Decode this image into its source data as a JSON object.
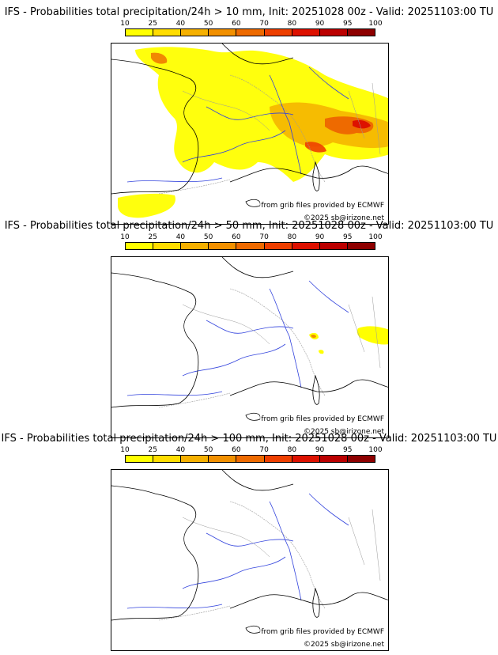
{
  "colorbar": {
    "ticks": [
      "10",
      "25",
      "40",
      "50",
      "60",
      "70",
      "80",
      "90",
      "95",
      "100"
    ],
    "colors": [
      "#ffff00",
      "#ffdd00",
      "#f5b000",
      "#f29000",
      "#ee6a00",
      "#ee3f00",
      "#dd1100",
      "#bb0000",
      "#8e0000"
    ]
  },
  "panels": [
    {
      "title": "IFS - Probabilities total precipitation/24h > 10 mm, Init: 20251028 00z - Valid: 20251103:00 TU",
      "credit_source": "from grib files provided by ECMWF",
      "credit_copyright": "©2025 sb@irizone.net"
    },
    {
      "title": "IFS - Probabilities total precipitation/24h > 50 mm, Init: 20251028 00z - Valid: 20251103:00 TU",
      "credit_source": "from grib files provided by ECMWF",
      "credit_copyright": "©2025 sb@irizone.net"
    },
    {
      "title": "IFS - Probabilities total precipitation/24h > 100 mm, Init: 20251028 00z - Valid: 20251103:00 TU",
      "credit_source": "from grib files provided by ECMWF",
      "credit_copyright": "©2025 sb@irizone.net"
    }
  ],
  "colors": {
    "coastline": "#000000",
    "borders": "#9a9a9a",
    "rivers": "#3344dd"
  }
}
